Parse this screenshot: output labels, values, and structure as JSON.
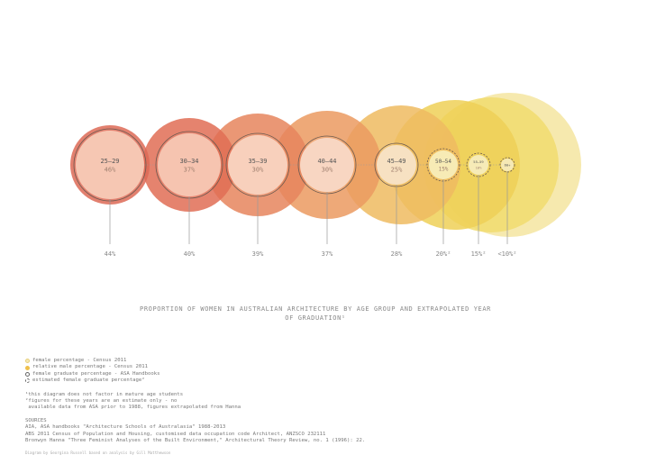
{
  "colors": {
    "groups": [
      "#dd6a56",
      "#e06d55",
      "#e6855d",
      "#eb9a60",
      "#eebb60",
      "#efd057",
      "#f1dc6e",
      "#f5e5a0"
    ],
    "legend_female": "#f3e2a0",
    "legend_male": "#efc04b"
  },
  "groups": [
    {
      "age": "25–29",
      "grad": "46%",
      "census": "44%",
      "relative_male": "",
      "census_pct": 44
    },
    {
      "age": "30–34",
      "grad": "37%",
      "census": "40%",
      "census_pct": 40
    },
    {
      "age": "35–39",
      "grad": "30%",
      "census": "39%",
      "census_pct": 39
    },
    {
      "age": "40–44",
      "grad": "30%",
      "census": "37%",
      "census_pct": 37
    },
    {
      "age": "45–49",
      "grad": "25%",
      "census": "28%",
      "census_pct": 28
    },
    {
      "age": "50–54",
      "grad": "15%",
      "census": "20%²",
      "census_pct": 20
    },
    {
      "age": "55–59",
      "grad": "10%",
      "census": "15%²",
      "census_pct": 15
    },
    {
      "age": "60+",
      "grad": "",
      "census": "<10%²",
      "census_pct": 10
    }
  ],
  "title_line1": "PROPORTION OF WOMEN IN AUSTRALIAN ARCHITECTURE BY AGE GROUP AND EXTRAPOLATED YEAR",
  "title_line2": "OF GRADUATION¹",
  "legend": [
    "female percentage - Census 2011",
    "relative male percentage - Census 2011",
    "female graduate percentage - ASA Handbooks",
    "estimated female graduate percentage²"
  ],
  "notes": [
    "¹this diagram does not factor in mature age students",
    "²figures for these years are an estimate only - no",
    " available data from ASA prior to 1988, figures extrapolated from Hanna"
  ],
  "sources_heading": "SOURCES",
  "sources": [
    "AIA, ASA handbooks \"Architecture Schools of Australasia\" 1988-2013",
    "ABS 2011 Census of Population and Housing, customised data occupation code Architect, ANZSCO 232111",
    "Bronwyn Hanna \"Three Feminist Analyses of the Built Environment,\" Architectural Theory Review, no. 1 (1996): 22."
  ],
  "credit": "Diagram by Georgina Russell based on analysis by Gill Matthewson"
}
